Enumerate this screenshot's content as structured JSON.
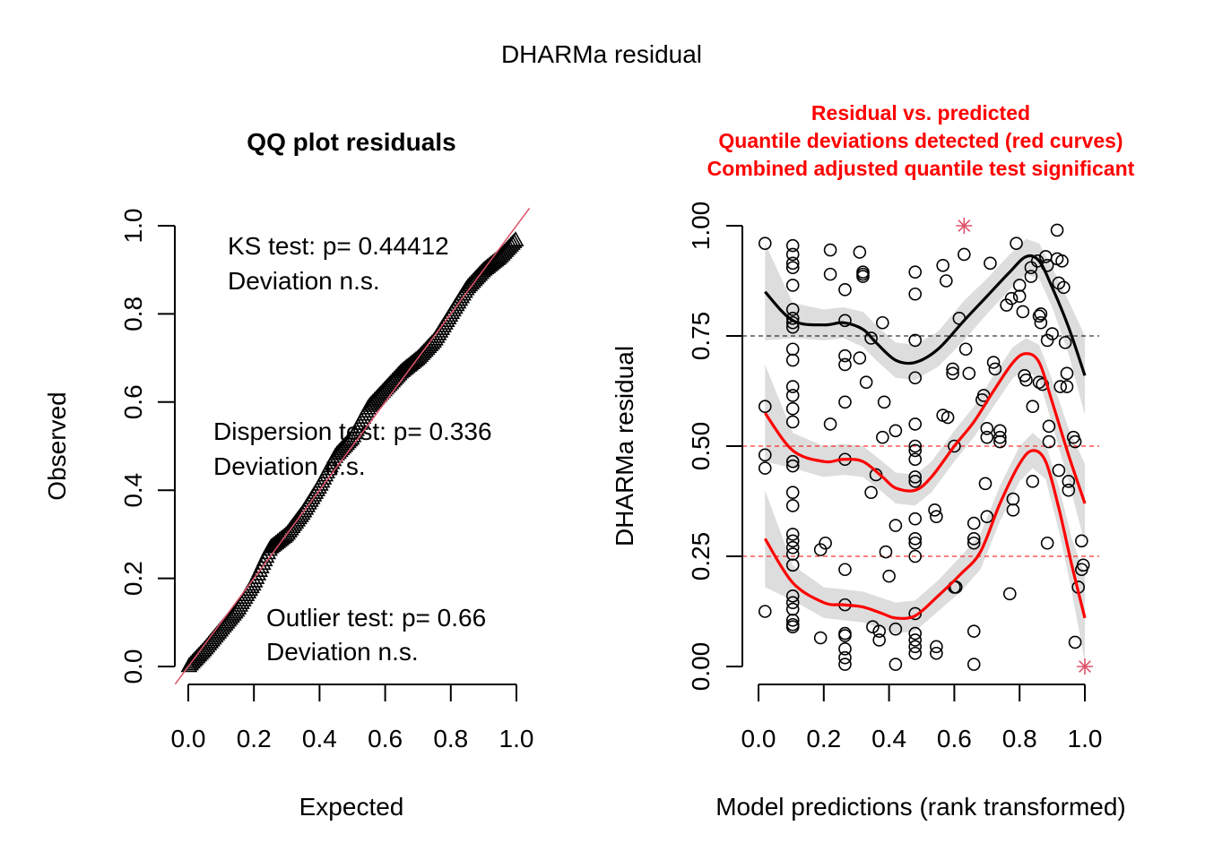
{
  "figure": {
    "title": "DHARMa residual"
  },
  "chart_data": [
    {
      "type": "scatter",
      "title": "QQ plot residuals",
      "xlabel": "Expected",
      "ylabel": "Observed",
      "xlim": [
        0,
        1
      ],
      "ylim": [
        0,
        1
      ],
      "xticks": [
        "0.0",
        "0.2",
        "0.4",
        "0.6",
        "0.8",
        "1.0"
      ],
      "yticks": [
        "0.0",
        "0.2",
        "0.4",
        "0.6",
        "0.8",
        "1.0"
      ],
      "marker": "triangle",
      "reference_line": {
        "slope": 1,
        "intercept": 0,
        "color": "#DF536B"
      },
      "qq_profile": {
        "expected": [
          0.0,
          0.05,
          0.1,
          0.15,
          0.2,
          0.25,
          0.3,
          0.35,
          0.4,
          0.45,
          0.5,
          0.55,
          0.6,
          0.65,
          0.7,
          0.75,
          0.8,
          0.85,
          0.9,
          0.95,
          1.0
        ],
        "observed": [
          0.0,
          0.04,
          0.085,
          0.13,
          0.19,
          0.27,
          0.3,
          0.35,
          0.41,
          0.48,
          0.52,
          0.59,
          0.63,
          0.67,
          0.7,
          0.74,
          0.8,
          0.86,
          0.9,
          0.93,
          0.97
        ]
      },
      "annotations": [
        {
          "line1": "KS test: p= 0.44412",
          "line2": "Deviation  n.s."
        },
        {
          "line1": "Dispersion test: p= 0.336",
          "line2": "Deviation  n.s."
        },
        {
          "line1": "Outlier test: p= 0.66",
          "line2": "Deviation  n.s."
        }
      ]
    },
    {
      "type": "scatter",
      "title_lines": [
        "Residual vs. predicted",
        "Quantile deviations detected (red curves)",
        "Combined adjusted quantile test significant"
      ],
      "title_color": "#FF0000",
      "xlabel": "Model predictions (rank transformed)",
      "ylabel": "DHARMa residual",
      "xlim": [
        0,
        1
      ],
      "ylim": [
        0,
        1
      ],
      "xticks": [
        "0.0",
        "0.2",
        "0.4",
        "0.6",
        "0.8",
        "1.0"
      ],
      "yticks": [
        "0.00",
        "0.25",
        "0.50",
        "0.75",
        "1.00"
      ],
      "hlines": [
        {
          "y": 0.25,
          "color": "#FF0000"
        },
        {
          "y": 0.5,
          "color": "#FF0000"
        },
        {
          "y": 0.75,
          "color": "#000000"
        }
      ],
      "points": [
        [
          0.02,
          0.96
        ],
        [
          0.02,
          0.59
        ],
        [
          0.02,
          0.48
        ],
        [
          0.02,
          0.45
        ],
        [
          0.02,
          0.125
        ],
        [
          0.105,
          0.955
        ],
        [
          0.105,
          0.935
        ],
        [
          0.105,
          0.915
        ],
        [
          0.105,
          0.905
        ],
        [
          0.105,
          0.865
        ],
        [
          0.105,
          0.81
        ],
        [
          0.105,
          0.79
        ],
        [
          0.105,
          0.78
        ],
        [
          0.105,
          0.77
        ],
        [
          0.105,
          0.72
        ],
        [
          0.105,
          0.695
        ],
        [
          0.105,
          0.635
        ],
        [
          0.105,
          0.615
        ],
        [
          0.105,
          0.585
        ],
        [
          0.105,
          0.555
        ],
        [
          0.105,
          0.465
        ],
        [
          0.105,
          0.455
        ],
        [
          0.105,
          0.395
        ],
        [
          0.105,
          0.365
        ],
        [
          0.105,
          0.3
        ],
        [
          0.105,
          0.285
        ],
        [
          0.105,
          0.27
        ],
        [
          0.105,
          0.255
        ],
        [
          0.105,
          0.23
        ],
        [
          0.105,
          0.16
        ],
        [
          0.105,
          0.145
        ],
        [
          0.105,
          0.13
        ],
        [
          0.105,
          0.105
        ],
        [
          0.105,
          0.095
        ],
        [
          0.105,
          0.09
        ],
        [
          0.19,
          0.265
        ],
        [
          0.205,
          0.28
        ],
        [
          0.19,
          0.065
        ],
        [
          0.22,
          0.945
        ],
        [
          0.22,
          0.89
        ],
        [
          0.22,
          0.55
        ],
        [
          0.265,
          0.855
        ],
        [
          0.265,
          0.785
        ],
        [
          0.265,
          0.705
        ],
        [
          0.265,
          0.685
        ],
        [
          0.265,
          0.6
        ],
        [
          0.265,
          0.47
        ],
        [
          0.265,
          0.22
        ],
        [
          0.265,
          0.14
        ],
        [
          0.265,
          0.075
        ],
        [
          0.265,
          0.07
        ],
        [
          0.265,
          0.04
        ],
        [
          0.265,
          0.02
        ],
        [
          0.265,
          0.005
        ],
        [
          0.31,
          0.94
        ],
        [
          0.32,
          0.895
        ],
        [
          0.32,
          0.89
        ],
        [
          0.32,
          0.885
        ],
        [
          0.31,
          0.7
        ],
        [
          0.33,
          0.645
        ],
        [
          0.345,
          0.745
        ],
        [
          0.345,
          0.395
        ],
        [
          0.35,
          0.09
        ],
        [
          0.38,
          0.78
        ],
        [
          0.38,
          0.52
        ],
        [
          0.385,
          0.6
        ],
        [
          0.36,
          0.435
        ],
        [
          0.39,
          0.26
        ],
        [
          0.4,
          0.205
        ],
        [
          0.37,
          0.08
        ],
        [
          0.37,
          0.06
        ],
        [
          0.42,
          0.535
        ],
        [
          0.42,
          0.32
        ],
        [
          0.42,
          0.085
        ],
        [
          0.42,
          0.005
        ],
        [
          0.48,
          0.895
        ],
        [
          0.48,
          0.845
        ],
        [
          0.48,
          0.74
        ],
        [
          0.48,
          0.655
        ],
        [
          0.48,
          0.55
        ],
        [
          0.48,
          0.5
        ],
        [
          0.48,
          0.49
        ],
        [
          0.48,
          0.47
        ],
        [
          0.48,
          0.43
        ],
        [
          0.48,
          0.42
        ],
        [
          0.48,
          0.335
        ],
        [
          0.48,
          0.29
        ],
        [
          0.48,
          0.28
        ],
        [
          0.48,
          0.25
        ],
        [
          0.48,
          0.12
        ],
        [
          0.48,
          0.075
        ],
        [
          0.48,
          0.06
        ],
        [
          0.48,
          0.045
        ],
        [
          0.48,
          0.03
        ],
        [
          0.54,
          0.355
        ],
        [
          0.545,
          0.34
        ],
        [
          0.545,
          0.045
        ],
        [
          0.545,
          0.03
        ],
        [
          0.565,
          0.91
        ],
        [
          0.575,
          0.875
        ],
        [
          0.565,
          0.57
        ],
        [
          0.58,
          0.565
        ],
        [
          0.595,
          0.675
        ],
        [
          0.595,
          0.665
        ],
        [
          0.6,
          0.5
        ],
        [
          0.6,
          0.18
        ],
        [
          0.605,
          0.18
        ],
        [
          0.615,
          0.79
        ],
        [
          0.63,
          0.935
        ],
        [
          0.635,
          0.72
        ],
        [
          0.645,
          0.665
        ],
        [
          0.66,
          0.325
        ],
        [
          0.66,
          0.29
        ],
        [
          0.66,
          0.28
        ],
        [
          0.66,
          0.08
        ],
        [
          0.66,
          0.005
        ],
        [
          0.69,
          0.615
        ],
        [
          0.685,
          0.605
        ],
        [
          0.7,
          0.54
        ],
        [
          0.7,
          0.52
        ],
        [
          0.695,
          0.415
        ],
        [
          0.7,
          0.34
        ],
        [
          0.71,
          0.915
        ],
        [
          0.72,
          0.69
        ],
        [
          0.725,
          0.675
        ],
        [
          0.74,
          0.535
        ],
        [
          0.74,
          0.51
        ],
        [
          0.74,
          0.52
        ],
        [
          0.76,
          0.82
        ],
        [
          0.775,
          0.835
        ],
        [
          0.78,
          0.38
        ],
        [
          0.78,
          0.355
        ],
        [
          0.77,
          0.165
        ],
        [
          0.79,
          0.96
        ],
        [
          0.8,
          0.865
        ],
        [
          0.8,
          0.84
        ],
        [
          0.81,
          0.805
        ],
        [
          0.815,
          0.66
        ],
        [
          0.82,
          0.65
        ],
        [
          0.835,
          0.905
        ],
        [
          0.835,
          0.885
        ],
        [
          0.84,
          0.59
        ],
        [
          0.84,
          0.42
        ],
        [
          0.855,
          0.92
        ],
        [
          0.86,
          0.795
        ],
        [
          0.865,
          0.8
        ],
        [
          0.865,
          0.78
        ],
        [
          0.86,
          0.645
        ],
        [
          0.87,
          0.64
        ],
        [
          0.88,
          0.93
        ],
        [
          0.885,
          0.91
        ],
        [
          0.885,
          0.74
        ],
        [
          0.9,
          0.755
        ],
        [
          0.89,
          0.545
        ],
        [
          0.89,
          0.51
        ],
        [
          0.885,
          0.28
        ],
        [
          0.915,
          0.99
        ],
        [
          0.915,
          0.925
        ],
        [
          0.92,
          0.87
        ],
        [
          0.925,
          0.635
        ],
        [
          0.92,
          0.445
        ],
        [
          0.93,
          0.92
        ],
        [
          0.935,
          0.86
        ],
        [
          0.94,
          0.735
        ],
        [
          0.945,
          0.665
        ],
        [
          0.945,
          0.635
        ],
        [
          0.95,
          0.42
        ],
        [
          0.95,
          0.4
        ],
        [
          0.965,
          0.52
        ],
        [
          0.97,
          0.51
        ],
        [
          0.97,
          0.055
        ],
        [
          0.99,
          0.285
        ],
        [
          0.995,
          0.23
        ],
        [
          0.99,
          0.22
        ],
        [
          0.98,
          0.18
        ]
      ],
      "outliers": [
        [
          0.63,
          1.0
        ],
        [
          1.0,
          0.0
        ]
      ],
      "outlier_color": "#DF536B",
      "quantile_curves": [
        {
          "quantile": 0.75,
          "color": "#000000",
          "x": [
            0.02,
            0.105,
            0.2,
            0.26,
            0.32,
            0.36,
            0.42,
            0.48,
            0.55,
            0.63,
            0.7,
            0.77,
            0.82,
            0.86,
            0.9,
            0.95,
            1.0
          ],
          "y": [
            0.85,
            0.785,
            0.775,
            0.78,
            0.765,
            0.735,
            0.695,
            0.69,
            0.72,
            0.785,
            0.84,
            0.895,
            0.93,
            0.92,
            0.86,
            0.77,
            0.66
          ],
          "ci_halfwidth": [
            0.11,
            0.04,
            0.035,
            0.035,
            0.04,
            0.04,
            0.04,
            0.04,
            0.04,
            0.045,
            0.04,
            0.04,
            0.04,
            0.04,
            0.045,
            0.06,
            0.09
          ]
        },
        {
          "quantile": 0.5,
          "color": "#FF0000",
          "x": [
            0.02,
            0.105,
            0.2,
            0.26,
            0.32,
            0.38,
            0.42,
            0.48,
            0.53,
            0.6,
            0.66,
            0.72,
            0.78,
            0.82,
            0.86,
            0.9,
            0.95,
            1.0
          ],
          "y": [
            0.575,
            0.49,
            0.465,
            0.47,
            0.465,
            0.43,
            0.405,
            0.4,
            0.43,
            0.5,
            0.555,
            0.625,
            0.69,
            0.71,
            0.69,
            0.6,
            0.48,
            0.37
          ],
          "ci_halfwidth": [
            0.11,
            0.04,
            0.035,
            0.035,
            0.035,
            0.035,
            0.035,
            0.035,
            0.035,
            0.035,
            0.035,
            0.035,
            0.035,
            0.035,
            0.04,
            0.05,
            0.06,
            0.09
          ]
        },
        {
          "quantile": 0.25,
          "color": "#FF0000",
          "x": [
            0.02,
            0.105,
            0.2,
            0.26,
            0.32,
            0.38,
            0.42,
            0.48,
            0.55,
            0.62,
            0.68,
            0.74,
            0.8,
            0.84,
            0.88,
            0.92,
            0.96,
            1.0
          ],
          "y": [
            0.29,
            0.19,
            0.145,
            0.14,
            0.135,
            0.12,
            0.11,
            0.115,
            0.16,
            0.21,
            0.26,
            0.37,
            0.46,
            0.49,
            0.465,
            0.36,
            0.23,
            0.11
          ],
          "ci_halfwidth": [
            0.11,
            0.04,
            0.035,
            0.035,
            0.035,
            0.035,
            0.035,
            0.035,
            0.035,
            0.04,
            0.04,
            0.04,
            0.04,
            0.04,
            0.04,
            0.05,
            0.06,
            0.1
          ]
        }
      ]
    }
  ]
}
